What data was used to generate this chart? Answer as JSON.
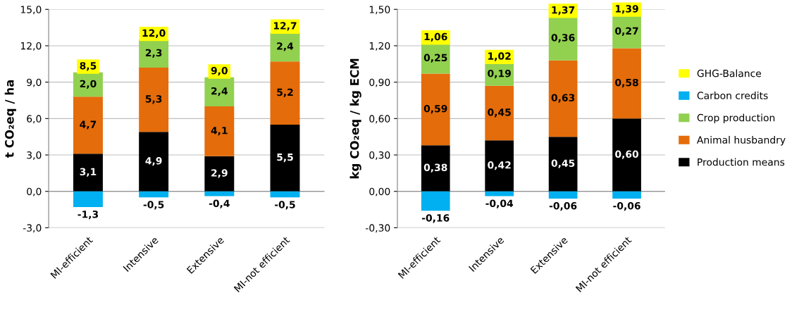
{
  "chart_data": [
    {
      "type": "bar",
      "stacked": true,
      "ylabel": "t CO₂eq / ha",
      "categories": [
        "MI-efficient",
        "Intensive",
        "Extensive",
        "MI-not efficient"
      ],
      "ylim": [
        -3,
        15
      ],
      "yticks": [
        {
          "value": -3,
          "label": "-3,0"
        },
        {
          "value": 0,
          "label": "0,0"
        },
        {
          "value": 3,
          "label": "3,0"
        },
        {
          "value": 6,
          "label": "6,0"
        },
        {
          "value": 9,
          "label": "9,0"
        },
        {
          "value": 12,
          "label": "12,0"
        },
        {
          "value": 15,
          "label": "15,0"
        }
      ],
      "grid": "y",
      "totals": [
        "8,5",
        "12,0",
        "9,0",
        "12,7"
      ],
      "series": [
        {
          "color": "#000000",
          "values": [
            3.1,
            4.9,
            2.9,
            5.5
          ],
          "value_labels": [
            "3,1",
            "4,9",
            "2,9",
            "5,5"
          ]
        },
        {
          "color": "#e46c0a",
          "values": [
            4.7,
            5.3,
            4.1,
            5.2
          ],
          "value_labels": [
            "4,7",
            "5,3",
            "4,1",
            "5,2"
          ]
        },
        {
          "color": "#92d050",
          "values": [
            2.0,
            2.3,
            2.4,
            2.4
          ],
          "value_labels": [
            "2,0",
            "2,3",
            "2,4",
            "2,4"
          ]
        },
        {
          "color": "#00b0f0",
          "values": [
            -1.3,
            -0.5,
            -0.4,
            -0.5
          ],
          "value_labels": [
            "-1,3",
            "-0,5",
            "-0,4",
            "-0,5"
          ]
        },
        {
          "type": "other",
          "color": "#ffff00",
          "values": [
            null,
            null,
            null,
            null
          ]
        }
      ]
    },
    {
      "type": "bar",
      "stacked": true,
      "ylabel": "kg CO₂eq / kg ECM",
      "categories": [
        "MI-efficient",
        "Intensive",
        "Extensive",
        "MI-not efficient"
      ],
      "ylim": [
        -0.3,
        1.5
      ],
      "yticks": [
        {
          "value": -0.3,
          "label": "-0,30"
        },
        {
          "value": 0,
          "label": "0,00"
        },
        {
          "value": 0.3,
          "label": "0,30"
        },
        {
          "value": 0.6,
          "label": "0,60"
        },
        {
          "value": 0.9,
          "label": "0,90"
        },
        {
          "value": 1.2,
          "label": "1,20"
        },
        {
          "value": 1.5,
          "label": "1,50"
        }
      ],
      "grid": "y",
      "legend": "right",
      "totals": [
        "1,06",
        "1,02",
        "1,37",
        "1,39"
      ],
      "series": [
        {
          "name": "Production means",
          "color": "#000000",
          "values": [
            0.38,
            0.42,
            0.45,
            0.6
          ],
          "value_labels": [
            "0,38",
            "0,42",
            "0,45",
            "0,60"
          ]
        },
        {
          "name": "Animal husbandry",
          "color": "#e46c0a",
          "values": [
            0.59,
            0.45,
            0.63,
            0.58
          ],
          "value_labels": [
            "0,59",
            "0,45",
            "0,63",
            "0,58"
          ]
        },
        {
          "name": "Crop production",
          "color": "#92d050",
          "values": [
            0.25,
            0.19,
            0.36,
            0.27
          ],
          "value_labels": [
            "0,25",
            "0,19",
            "0,36",
            "0,27"
          ]
        },
        {
          "name": "Carbon credits",
          "color": "#00b0f0",
          "values": [
            -0.16,
            -0.04,
            -0.06,
            -0.06
          ],
          "value_labels": [
            "-0,16",
            "-0,04",
            "-0,06",
            "-0,06"
          ]
        },
        {
          "name": "GHG-Balance",
          "type": "other",
          "color": "#ffff00",
          "values": [
            null,
            null,
            null,
            null
          ]
        }
      ]
    }
  ]
}
